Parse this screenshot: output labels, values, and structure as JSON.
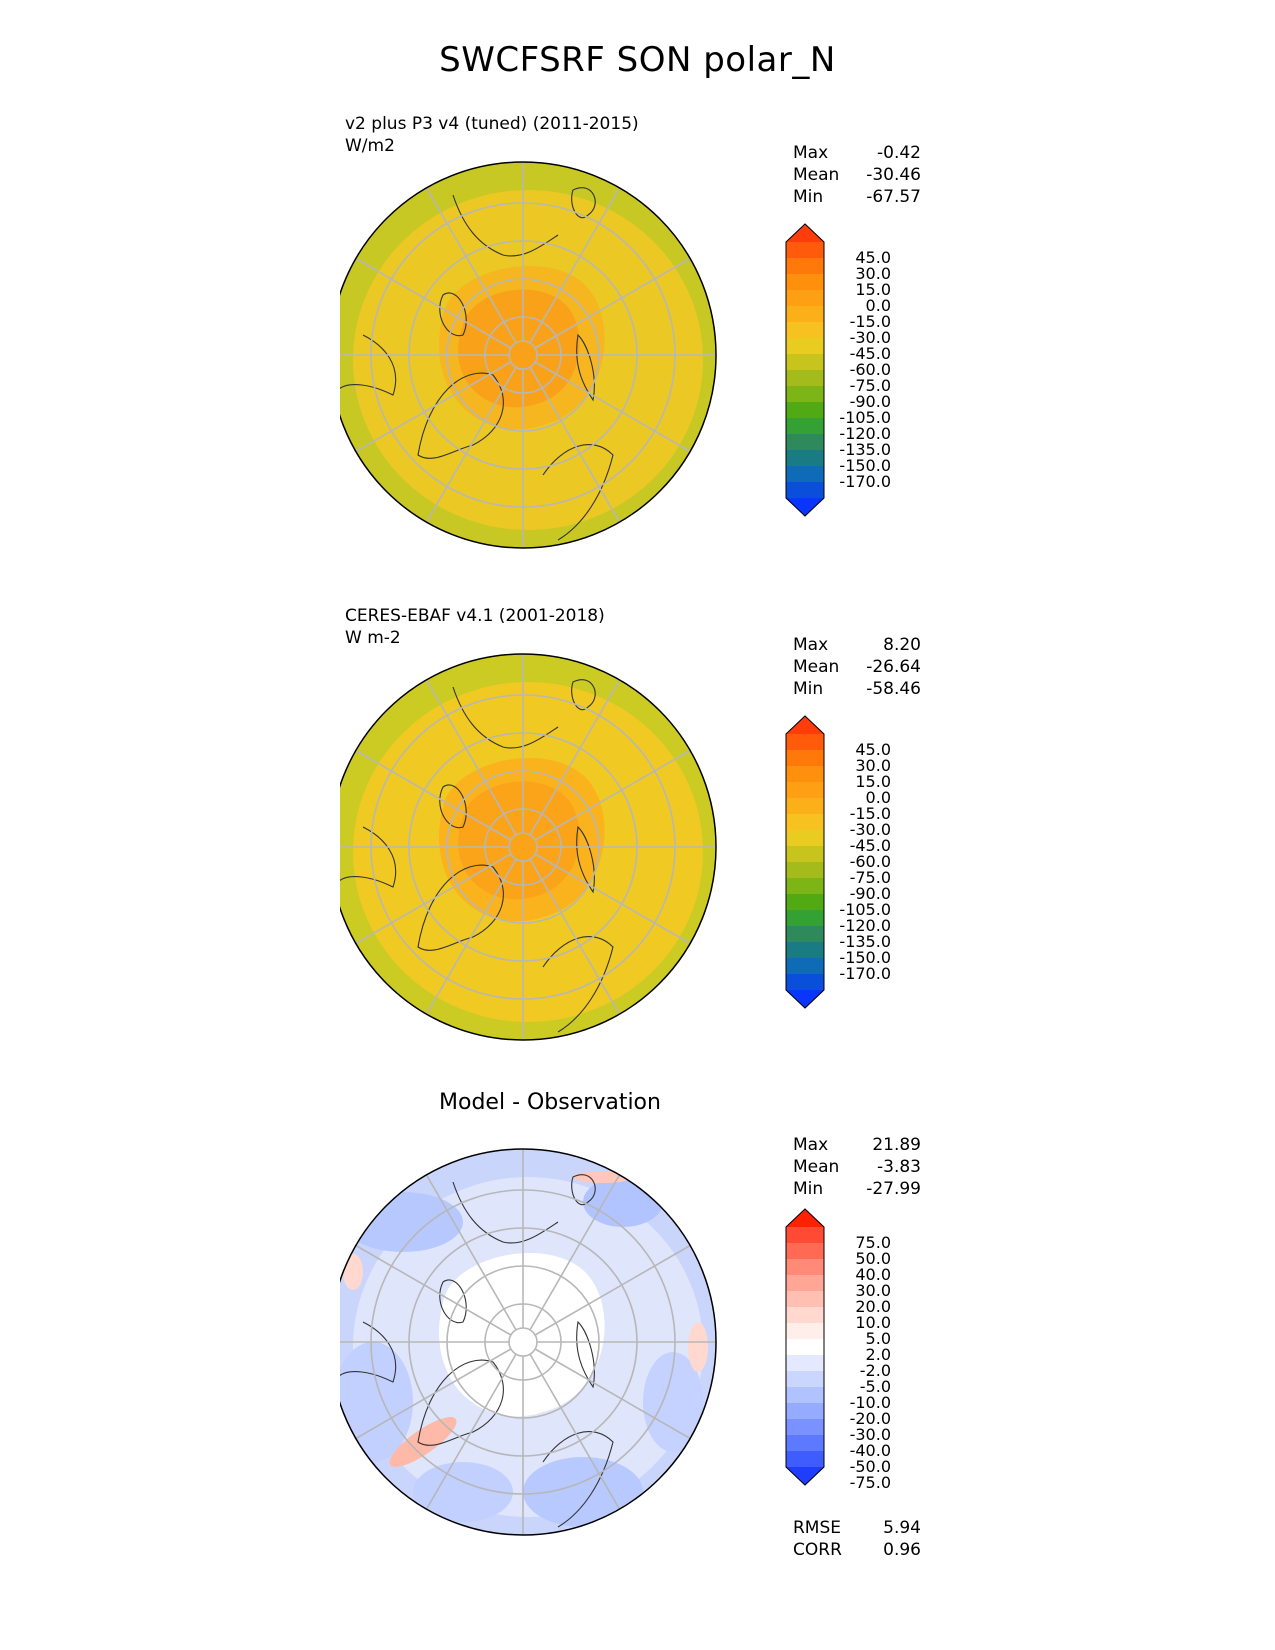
{
  "title": "SWCFSRF SON polar_N",
  "panels": [
    {
      "id": "model",
      "title_lines": [
        "v2 plus P3 v4 (tuned) (2011-2015)",
        "W/m2"
      ],
      "center_title": "",
      "stats": [
        {
          "label": "Max",
          "value": "-0.42"
        },
        {
          "label": "Mean",
          "value": "-30.46"
        },
        {
          "label": "Min",
          "value": "-67.57"
        }
      ],
      "colorbar": {
        "levels": [
          "45.0",
          "30.0",
          "15.0",
          "0.0",
          "-15.0",
          "-30.0",
          "-45.0",
          "-60.0",
          "-75.0",
          "-90.0",
          "-105.0",
          "-120.0",
          "-135.0",
          "-150.0",
          "-170.0"
        ],
        "colors": [
          "#ff3d0a",
          "#ff5b0a",
          "#ff780a",
          "#ff900d",
          "#ff9f14",
          "#fbb01a",
          "#f7c21f",
          "#e9cc20",
          "#c6c41d",
          "#a3bb1b",
          "#7db517",
          "#51aa14",
          "#34a134",
          "#2e8a5c",
          "#197c84",
          "#0f6ab8",
          "#0a4fdc",
          "#0a35ff"
        ]
      },
      "extras": []
    },
    {
      "id": "obs",
      "title_lines": [
        "CERES-EBAF v4.1 (2001-2018)",
        "W m-2"
      ],
      "center_title": "",
      "stats": [
        {
          "label": "Max",
          "value": "8.20"
        },
        {
          "label": "Mean",
          "value": "-26.64"
        },
        {
          "label": "Min",
          "value": "-58.46"
        }
      ],
      "colorbar": {
        "levels": [
          "45.0",
          "30.0",
          "15.0",
          "0.0",
          "-15.0",
          "-30.0",
          "-45.0",
          "-60.0",
          "-75.0",
          "-90.0",
          "-105.0",
          "-120.0",
          "-135.0",
          "-150.0",
          "-170.0"
        ],
        "colors": [
          "#ff3d0a",
          "#ff5b0a",
          "#ff780a",
          "#ff900d",
          "#ff9f14",
          "#fbb01a",
          "#f7c21f",
          "#e9cc20",
          "#c6c41d",
          "#a3bb1b",
          "#7db517",
          "#51aa14",
          "#34a134",
          "#2e8a5c",
          "#197c84",
          "#0f6ab8",
          "#0a4fdc",
          "#0a35ff"
        ]
      },
      "extras": []
    },
    {
      "id": "diff",
      "title_lines": [],
      "center_title": "Model - Observation",
      "stats": [
        {
          "label": "Max",
          "value": "21.89"
        },
        {
          "label": "Mean",
          "value": "-3.83"
        },
        {
          "label": "Min",
          "value": "-27.99"
        }
      ],
      "colorbar": {
        "levels": [
          "75.0",
          "50.0",
          "40.0",
          "30.0",
          "20.0",
          "10.0",
          "5.0",
          "2.0",
          "-2.0",
          "-5.0",
          "-10.0",
          "-20.0",
          "-30.0",
          "-40.0",
          "-50.0",
          "-75.0"
        ],
        "colors": [
          "#ff2200",
          "#ff4b33",
          "#ff6a55",
          "#ff8a78",
          "#ffa697",
          "#ffc0b3",
          "#ffd8cf",
          "#ffeeea",
          "#ffffff",
          "#e4e9ff",
          "#cbd6ff",
          "#b0c2ff",
          "#94abff",
          "#7992ff",
          "#5c79ff",
          "#3f5dff",
          "#1f3dff"
        ]
      },
      "extras": [
        {
          "label": "RMSE",
          "value": "5.94"
        },
        {
          "label": "CORR",
          "value": "0.96"
        }
      ]
    }
  ],
  "map_colors": {
    "model": {
      "outer": "#c8c825",
      "mid": "#ebc824",
      "inner": "#f5b620",
      "core": "#f9a219"
    },
    "obs": {
      "outer": "#cccb24",
      "mid": "#f0c923",
      "inner": "#fab31c",
      "core": "#fba319"
    },
    "diff": {
      "outer": "#c9d5fb",
      "mid": "#dfe6fc",
      "inner": "#ffffff",
      "core": "#ffffff"
    }
  }
}
